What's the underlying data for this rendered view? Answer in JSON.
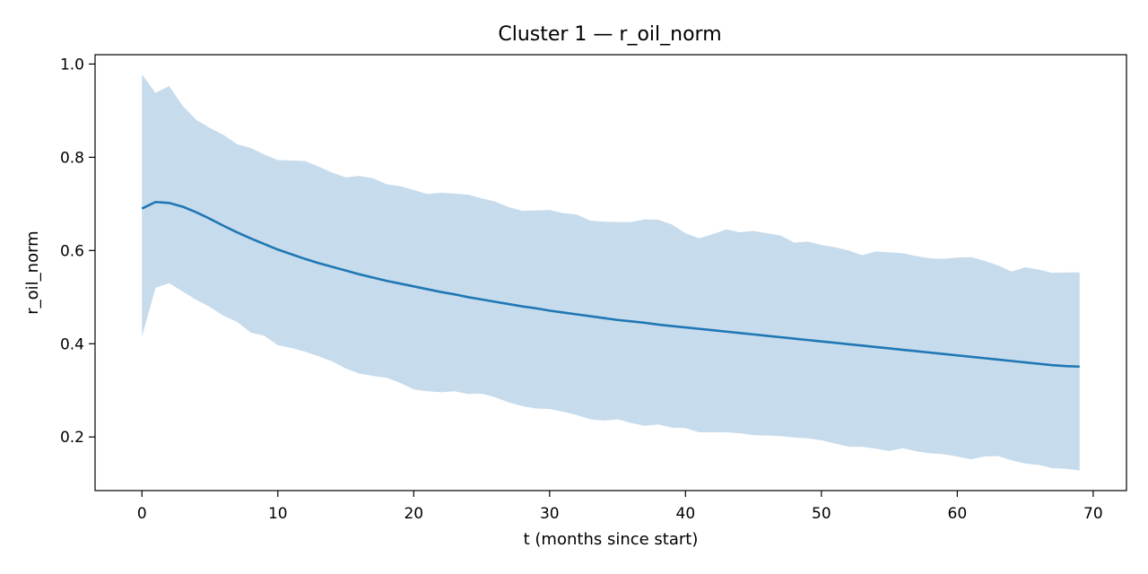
{
  "chart_data": {
    "type": "line",
    "title": "Cluster 1 — r_oil_norm",
    "xlabel": "t (months since start)",
    "ylabel": "r_oil_norm",
    "xlim": [
      -3.45,
      72.45
    ],
    "ylim": [
      0.085,
      1.02
    ],
    "xticks": [
      0,
      10,
      20,
      30,
      40,
      50,
      60,
      70
    ],
    "xtick_labels": [
      "0",
      "10",
      "20",
      "30",
      "40",
      "50",
      "60",
      "70"
    ],
    "yticks": [
      0.2,
      0.4,
      0.6,
      0.8,
      1.0
    ],
    "ytick_labels": [
      "0.2",
      "0.4",
      "0.6",
      "0.8",
      "1.0"
    ],
    "grid": false,
    "colors": {
      "line": "#1f77b4",
      "band": "#c6dbec"
    },
    "x": [
      0,
      1,
      2,
      3,
      4,
      5,
      6,
      7,
      8,
      9,
      10,
      11,
      12,
      13,
      14,
      15,
      16,
      17,
      18,
      19,
      20,
      21,
      22,
      23,
      24,
      25,
      26,
      27,
      28,
      29,
      30,
      31,
      32,
      33,
      34,
      35,
      36,
      37,
      38,
      39,
      40,
      41,
      42,
      43,
      44,
      45,
      46,
      47,
      48,
      49,
      50,
      51,
      52,
      53,
      54,
      55,
      56,
      57,
      58,
      59,
      60,
      61,
      62,
      63,
      64,
      65,
      66,
      67,
      68,
      69
    ],
    "series": [
      {
        "type": "line",
        "values": [
          0.69,
          0.704,
          0.702,
          0.694,
          0.682,
          0.668,
          0.653,
          0.639,
          0.626,
          0.614,
          0.602,
          0.592,
          0.582,
          0.573,
          0.565,
          0.557,
          0.549,
          0.542,
          0.535,
          0.529,
          0.523,
          0.517,
          0.511,
          0.506,
          0.5,
          0.495,
          0.49,
          0.485,
          0.48,
          0.476,
          0.471,
          0.467,
          0.463,
          0.459,
          0.455,
          0.451,
          0.448,
          0.445,
          0.441,
          0.438,
          0.435,
          0.432,
          0.429,
          0.426,
          0.423,
          0.42,
          0.417,
          0.414,
          0.411,
          0.408,
          0.405,
          0.402,
          0.399,
          0.396,
          0.393,
          0.39,
          0.387,
          0.384,
          0.381,
          0.378,
          0.375,
          0.372,
          0.369,
          0.366,
          0.363,
          0.36,
          0.357,
          0.354,
          0.352,
          0.351
        ]
      },
      {
        "type": "band",
        "upper": [
          0.978,
          0.938,
          0.953,
          0.91,
          0.88,
          0.863,
          0.848,
          0.828,
          0.82,
          0.806,
          0.794,
          0.793,
          0.792,
          0.78,
          0.767,
          0.757,
          0.76,
          0.755,
          0.742,
          0.738,
          0.73,
          0.721,
          0.724,
          0.722,
          0.72,
          0.712,
          0.705,
          0.693,
          0.685,
          0.686,
          0.687,
          0.68,
          0.677,
          0.664,
          0.662,
          0.661,
          0.661,
          0.667,
          0.666,
          0.656,
          0.637,
          0.626,
          0.635,
          0.645,
          0.639,
          0.642,
          0.637,
          0.632,
          0.617,
          0.619,
          0.612,
          0.607,
          0.6,
          0.59,
          0.598,
          0.596,
          0.594,
          0.588,
          0.583,
          0.582,
          0.585,
          0.586,
          0.578,
          0.568,
          0.555,
          0.564,
          0.559,
          0.552,
          0.553,
          0.553
        ],
        "lower": [
          0.415,
          0.52,
          0.53,
          0.512,
          0.494,
          0.479,
          0.46,
          0.447,
          0.424,
          0.417,
          0.397,
          0.391,
          0.383,
          0.373,
          0.362,
          0.347,
          0.336,
          0.331,
          0.327,
          0.316,
          0.302,
          0.298,
          0.296,
          0.298,
          0.292,
          0.293,
          0.285,
          0.274,
          0.266,
          0.261,
          0.26,
          0.254,
          0.247,
          0.238,
          0.235,
          0.238,
          0.23,
          0.224,
          0.227,
          0.22,
          0.219,
          0.21,
          0.21,
          0.21,
          0.208,
          0.204,
          0.203,
          0.202,
          0.199,
          0.197,
          0.193,
          0.186,
          0.179,
          0.179,
          0.175,
          0.17,
          0.176,
          0.169,
          0.165,
          0.163,
          0.158,
          0.152,
          0.158,
          0.159,
          0.15,
          0.143,
          0.14,
          0.133,
          0.132,
          0.128
        ]
      }
    ]
  }
}
